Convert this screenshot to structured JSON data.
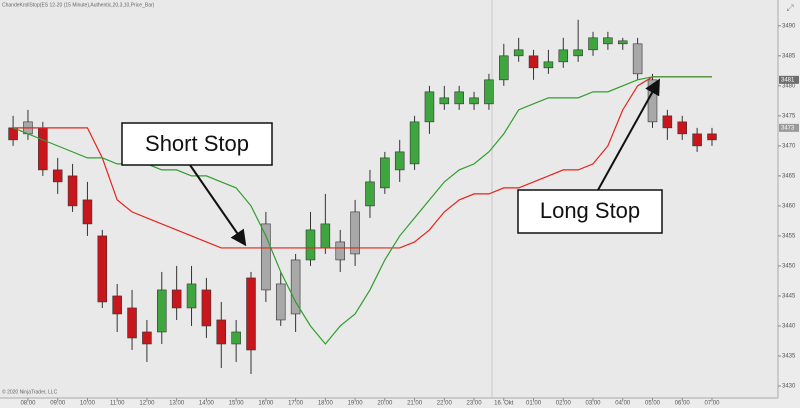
{
  "chart_data": {
    "type": "candlestick",
    "title": "ChandeKrollStop(ES 12-20 (15 Minute),Authentic,20,3,10,Price_Bar)",
    "copyright": "© 2020 NinjaTrader, LLC",
    "x": [
      7.5,
      8,
      8.5,
      9,
      9.5,
      10,
      10.5,
      11,
      11.5,
      12,
      12.5,
      13,
      13.5,
      14,
      14.5,
      15,
      15.5,
      16,
      16.5,
      17,
      17.5,
      18,
      18.5,
      19,
      19.5,
      20,
      20.5,
      21,
      21.5,
      22,
      22.5,
      23,
      23.5,
      24,
      24.5,
      25,
      25.5,
      26,
      26.5,
      27,
      27.5,
      28,
      28.5,
      29,
      29.5,
      30,
      30.5,
      31
    ],
    "open": [
      3473,
      3472,
      3473,
      3466,
      3465,
      3461,
      3455,
      3445,
      3443,
      3439,
      3439,
      3446,
      3443,
      3446,
      3441,
      3437,
      3448,
      3446,
      3447,
      3442,
      3451,
      3453,
      3454,
      3452,
      3460,
      3463,
      3466,
      3467,
      3474,
      3477,
      3477,
      3478,
      3477,
      3481,
      3485,
      3485,
      3483,
      3484,
      3485,
      3486,
      3487,
      3487,
      3487,
      3481,
      3475,
      3474,
      3472,
      3471
    ],
    "high": [
      3475,
      3476,
      3474,
      3468,
      3467,
      3464,
      3456,
      3447,
      3446,
      3441,
      3449,
      3450,
      3450,
      3448,
      3444,
      3441,
      3449,
      3459,
      3449,
      3452,
      3459,
      3462,
      3456,
      3461,
      3466,
      3469,
      3471,
      3475,
      3480,
      3480,
      3480,
      3479,
      3482,
      3487,
      3488,
      3486,
      3486,
      3488,
      3491,
      3489,
      3489,
      3488,
      3488,
      3482,
      3476,
      3475,
      3473,
      3473
    ],
    "low": [
      3470,
      3471,
      3465,
      3462,
      3459,
      3455,
      3443,
      3439,
      3436,
      3434,
      3437,
      3441,
      3440,
      3438,
      3433,
      3434,
      3432,
      3444,
      3440,
      3439,
      3450,
      3452,
      3449,
      3450,
      3458,
      3462,
      3464,
      3466,
      3472,
      3476,
      3476,
      3476,
      3476,
      3480,
      3484,
      3481,
      3482,
      3483,
      3484,
      3485,
      3486,
      3486,
      3481,
      3473,
      3471,
      3471,
      3469,
      3470
    ],
    "close": [
      3471,
      3474,
      3466,
      3464,
      3460,
      3457,
      3444,
      3442,
      3438,
      3437,
      3446,
      3443,
      3447,
      3440,
      3437,
      3439,
      3436,
      3457,
      3441,
      3451,
      3456,
      3457,
      3451,
      3459,
      3464,
      3468,
      3469,
      3474,
      3479,
      3478,
      3479,
      3477,
      3481,
      3485,
      3486,
      3483,
      3484,
      3486,
      3486,
      3488,
      3488,
      3487.5,
      3482,
      3474,
      3473,
      3472,
      3470,
      3472
    ],
    "candle_colors": [
      "#c8161d",
      "#a8a8a8",
      "#c8161d",
      "#c8161d",
      "#c8161d",
      "#c8161d",
      "#c8161d",
      "#c8161d",
      "#c8161d",
      "#c8161d",
      "#3fa63f",
      "#c8161d",
      "#3fa63f",
      "#c8161d",
      "#c8161d",
      "#3fa63f",
      "#c8161d",
      "#a8a8a8",
      "#a8a8a8",
      "#a8a8a8",
      "#3fa63f",
      "#3fa63f",
      "#a8a8a8",
      "#a8a8a8",
      "#3fa63f",
      "#3fa63f",
      "#3fa63f",
      "#3fa63f",
      "#3fa63f",
      "#3fa63f",
      "#3fa63f",
      "#3fa63f",
      "#3fa63f",
      "#3fa63f",
      "#3fa63f",
      "#c8161d",
      "#3fa63f",
      "#3fa63f",
      "#3fa63f",
      "#3fa63f",
      "#3fa63f",
      "#3fa63f",
      "#a8a8a8",
      "#a8a8a8",
      "#c8161d",
      "#c8161d",
      "#c8161d",
      "#c8161d"
    ],
    "series": [
      {
        "name": "Short Stop",
        "color": "#e8231e",
        "values": [
          3473,
          3473,
          3473,
          3473,
          3473,
          3473,
          3468,
          3461,
          3459,
          3458,
          3457,
          3456,
          3455,
          3454,
          3453,
          3453,
          3453,
          3453,
          3453,
          3453,
          3453,
          3453,
          3453,
          3453,
          3453,
          3453,
          3453,
          3454,
          3456,
          3459,
          3461,
          3462,
          3462,
          3463,
          3463,
          3464,
          3465,
          3466,
          3466,
          3467,
          3470,
          3476,
          3480,
          3481.5,
          3481.5,
          3481.5,
          3481.5,
          3481.5
        ]
      },
      {
        "name": "Long Stop",
        "color": "#2f9e2f",
        "values": [
          3473,
          3472,
          3471,
          3470,
          3469,
          3468,
          3468,
          3467,
          3467,
          3467,
          3466,
          3466,
          3465,
          3465,
          3464,
          3463,
          3460,
          3455,
          3449,
          3444,
          3440,
          3437,
          3440,
          3442,
          3446,
          3451,
          3455,
          3458,
          3461,
          3464,
          3466,
          3467,
          3469,
          3472,
          3476,
          3477,
          3478,
          3478,
          3478,
          3479,
          3479,
          3480,
          3481,
          3481.5,
          3481.5,
          3481.5,
          3481.5,
          3481.5
        ]
      }
    ],
    "xlim": [
      7.06,
      33.22
    ],
    "xticks": [
      {
        "value": 8,
        "label": "08:00"
      },
      {
        "value": 9,
        "label": "09:00"
      },
      {
        "value": 10,
        "label": "10:00"
      },
      {
        "value": 11,
        "label": "11:00"
      },
      {
        "value": 12,
        "label": "12:00"
      },
      {
        "value": 13,
        "label": "13:00"
      },
      {
        "value": 14,
        "label": "14:00"
      },
      {
        "value": 15,
        "label": "15:00"
      },
      {
        "value": 16,
        "label": "16:00"
      },
      {
        "value": 17,
        "label": "17:00"
      },
      {
        "value": 18,
        "label": "18:00"
      },
      {
        "value": 19,
        "label": "19:00"
      },
      {
        "value": 20,
        "label": "20:00"
      },
      {
        "value": 21,
        "label": "21:00"
      },
      {
        "value": 22,
        "label": "22:00"
      },
      {
        "value": 23,
        "label": "23:00"
      },
      {
        "value": 24,
        "label": "16. Okt"
      },
      {
        "value": 25,
        "label": "01:00"
      },
      {
        "value": 26,
        "label": "02:00"
      },
      {
        "value": 27,
        "label": "03:00"
      },
      {
        "value": 28,
        "label": "04:00"
      },
      {
        "value": 29,
        "label": "05:00"
      },
      {
        "value": 30,
        "label": "06:00"
      },
      {
        "value": 31,
        "label": "07:00"
      }
    ],
    "ylim": [
      3428,
      3494.3
    ],
    "yticks": [
      3490,
      3485,
      3480,
      3475,
      3470,
      3465,
      3460,
      3455,
      3450,
      3445,
      3440,
      3435,
      3430
    ],
    "price_markers": [
      3481,
      3473
    ]
  }
}
